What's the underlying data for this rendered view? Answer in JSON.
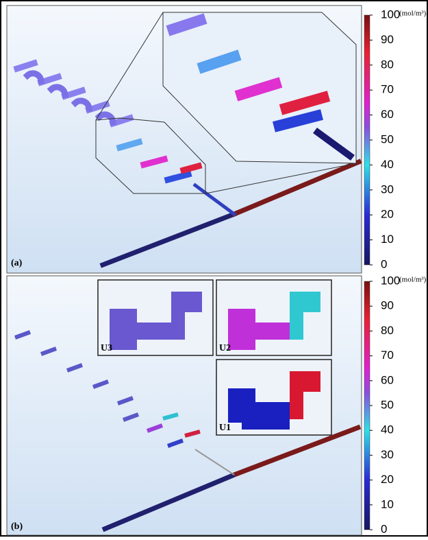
{
  "panels": [
    {
      "label": "(a)",
      "colorbar": {
        "unit": "(mol/m³)",
        "lim": [
          0,
          100
        ],
        "ticks": [
          0,
          10,
          20,
          30,
          40,
          50,
          60,
          70,
          80,
          90,
          100
        ]
      }
    },
    {
      "label": "(b)",
      "insets": [
        "U3",
        "U2",
        "U1"
      ],
      "colorbar": {
        "unit": "(mol/m³)",
        "lim": [
          0,
          100
        ],
        "ticks": [
          0,
          10,
          20,
          30,
          40,
          50,
          60,
          70,
          80,
          90,
          100
        ]
      }
    }
  ]
}
